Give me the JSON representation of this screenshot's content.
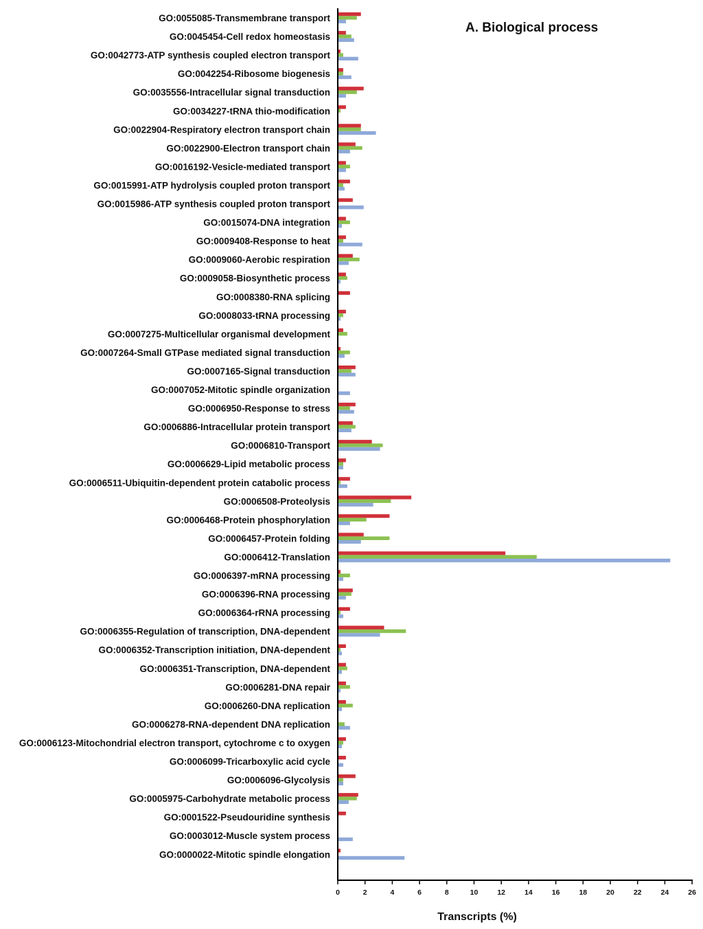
{
  "chart_data": {
    "type": "bar",
    "orientation": "horizontal",
    "title": "A. Biological process",
    "xlabel": "Transcripts (%)",
    "ylabel": "",
    "xlim": [
      0,
      26
    ],
    "xticks": [
      0,
      2,
      4,
      6,
      8,
      10,
      12,
      14,
      16,
      18,
      20,
      22,
      24,
      26
    ],
    "grid": false,
    "legend": "none",
    "categories": [
      "GO:0055085-Transmembrane transport",
      "GO:0045454-Cell redox homeostasis",
      "GO:0042773-ATP synthesis coupled electron transport",
      "GO:0042254-Ribosome biogenesis",
      "GO:0035556-Intracellular signal transduction",
      "GO:0034227-tRNA thio-modification",
      "GO:0022904-Respiratory electron transport chain",
      "GO:0022900-Electron transport chain",
      "GO:0016192-Vesicle-mediated transport",
      "GO:0015991-ATP hydrolysis coupled proton transport",
      "GO:0015986-ATP synthesis coupled proton transport",
      "GO:0015074-DNA integration",
      "GO:0009408-Response to heat",
      "GO:0009060-Aerobic respiration",
      "GO:0009058-Biosynthetic process",
      "GO:0008380-RNA splicing",
      "GO:0008033-tRNA processing",
      "GO:0007275-Multicellular organismal development",
      "GO:0007264-Small GTPase mediated signal transduction",
      "GO:0007165-Signal transduction",
      "GO:0007052-Mitotic spindle organization",
      "GO:0006950-Response to stress",
      "GO:0006886-Intracellular protein transport",
      "GO:0006810-Transport",
      "GO:0006629-Lipid metabolic process",
      "GO:0006511-Ubiquitin-dependent protein catabolic process",
      "GO:0006508-Proteolysis",
      "GO:0006468-Protein phosphorylation",
      "GO:0006457-Protein folding",
      "GO:0006412-Translation",
      "GO:0006397-mRNA processing",
      "GO:0006396-RNA processing",
      "GO:0006364-rRNA processing",
      "GO:0006355-Regulation of transcription, DNA-dependent",
      "GO:0006352-Transcription initiation, DNA-dependent",
      "GO:0006351-Transcription, DNA-dependent",
      "GO:0006281-DNA repair",
      "GO:0006260-DNA replication",
      "GO:0006278-RNA-dependent DNA replication",
      "GO:0006123-Mitochondrial electron transport, cytochrome c to oxygen",
      "GO:0006099-Tricarboxylic acid cycle",
      "GO:0006096-Glycolysis",
      "GO:0005975-Carbohydrate metabolic process",
      "GO:0001522-Pseudouridine synthesis",
      "GO:0003012-Muscle system process",
      "GO:0000022-Mitotic spindle elongation"
    ],
    "series": [
      {
        "name": "red",
        "color": "#d0313a",
        "values": [
          1.7,
          0.6,
          0.2,
          0.4,
          1.9,
          0.6,
          1.7,
          1.3,
          0.6,
          0.9,
          1.1,
          0.6,
          0.6,
          1.1,
          0.6,
          0.9,
          0.6,
          0.4,
          0.2,
          1.3,
          0.0,
          1.3,
          1.1,
          2.5,
          0.6,
          0.9,
          5.4,
          3.8,
          1.9,
          12.3,
          0.2,
          1.1,
          0.9,
          3.4,
          0.6,
          0.6,
          0.6,
          0.6,
          0.0,
          0.6,
          0.6,
          1.3,
          1.5,
          0.6,
          0.0,
          0.2
        ]
      },
      {
        "name": "green",
        "color": "#8cc152",
        "values": [
          1.4,
          1.0,
          0.4,
          0.4,
          1.4,
          0.2,
          1.7,
          1.8,
          0.9,
          0.4,
          0.0,
          0.9,
          0.4,
          1.6,
          0.7,
          0.0,
          0.4,
          0.7,
          0.9,
          1.0,
          0.0,
          0.9,
          1.3,
          3.3,
          0.4,
          0.2,
          3.9,
          2.1,
          3.8,
          14.6,
          0.9,
          1.0,
          0.2,
          5.0,
          0.2,
          0.7,
          0.9,
          1.1,
          0.5,
          0.4,
          0.0,
          0.4,
          1.4,
          0.0,
          0.0,
          0.0
        ]
      },
      {
        "name": "blue",
        "color": "#8fa9d9",
        "values": [
          0.6,
          1.2,
          1.5,
          1.0,
          0.6,
          0.0,
          2.8,
          0.9,
          0.6,
          0.5,
          1.9,
          0.3,
          1.8,
          0.8,
          0.2,
          0.0,
          0.2,
          0.0,
          0.5,
          1.3,
          0.9,
          1.2,
          1.0,
          3.1,
          0.4,
          0.7,
          2.6,
          0.9,
          1.7,
          24.4,
          0.4,
          0.6,
          0.4,
          3.1,
          0.3,
          0.3,
          0.2,
          0.3,
          0.9,
          0.3,
          0.4,
          0.4,
          0.8,
          0.0,
          1.1,
          4.9
        ]
      }
    ]
  }
}
